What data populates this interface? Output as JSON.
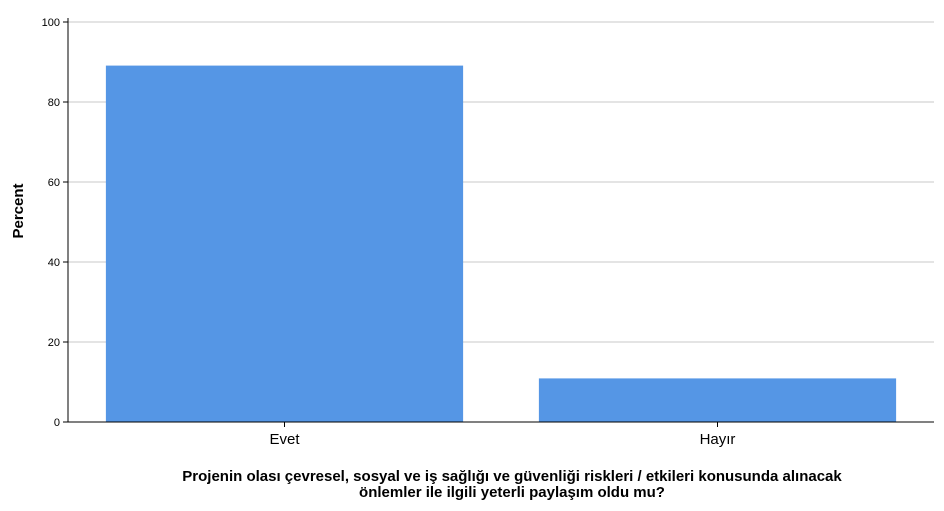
{
  "chart_data": {
    "type": "bar",
    "categories": [
      "Evet",
      "Hayır"
    ],
    "values": [
      89.1,
      10.9
    ],
    "ylabel": "Percent",
    "xlabel_lines": [
      "Projenin olası çevresel, sosyal ve iş sağlığı ve güvenliği riskleri / etkileri konusunda alınacak",
      "önlemler ile ilgili yeterli paylaşım oldu mu?"
    ],
    "ylim": [
      0,
      100
    ],
    "yticks": [
      "0",
      "20",
      "40",
      "60",
      "80",
      "100"
    ],
    "grid": true,
    "colors": {
      "bar": "#5596e5",
      "grid": "#c8c8c8",
      "axis": "#000000"
    }
  }
}
